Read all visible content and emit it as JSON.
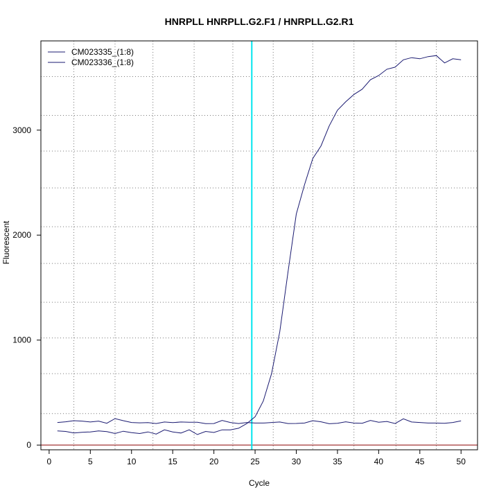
{
  "chart_data": {
    "type": "line",
    "title": "HNRPLL  HNRPLL.G2.F1 / HNRPLL.G2.R1",
    "xlabel": "Cycle",
    "ylabel": "Fluorescent",
    "xlim": [
      -1.0,
      52.0
    ],
    "ylim": [
      -45,
      3850
    ],
    "x_ticks": [
      0,
      5,
      10,
      15,
      20,
      25,
      30,
      35,
      40,
      45,
      50
    ],
    "y_ticks": [
      0,
      1000,
      2000,
      3000
    ],
    "x_grid": [
      3,
      8,
      12.6,
      17.6,
      22.3,
      27.2,
      32,
      37,
      42.1,
      47
    ],
    "y_grid": [
      300,
      680,
      1020,
      1360,
      1730,
      2080,
      2450,
      2800,
      3140,
      3510
    ],
    "grid": true,
    "legend_position": "top-left",
    "threshold_cycle": 24.6,
    "baseline_value": 0,
    "colors": {
      "series": "#191970",
      "threshold": "#00e5ee",
      "baseline": "#8b0000",
      "grid": "#777777"
    },
    "x": [
      1,
      2,
      3,
      4,
      5,
      6,
      7,
      8,
      9,
      10,
      11,
      12,
      13,
      14,
      15,
      16,
      17,
      18,
      19,
      20,
      21,
      22,
      23,
      24,
      25,
      26,
      27,
      28,
      29,
      30,
      31,
      32,
      33,
      34,
      35,
      36,
      37,
      38,
      39,
      40,
      41,
      42,
      43,
      44,
      45,
      46,
      47,
      48,
      49,
      50
    ],
    "series": [
      {
        "name": "CM023335_(1:8)",
        "values": [
          215,
          222,
          232,
          228,
          220,
          228,
          208,
          252,
          232,
          215,
          212,
          214,
          205,
          220,
          214,
          220,
          218,
          218,
          204,
          205,
          235,
          215,
          205,
          215,
          210,
          210,
          215,
          220,
          205,
          206,
          210,
          232,
          222,
          203,
          208,
          222,
          210,
          208,
          235,
          218,
          225,
          205,
          250,
          220,
          215,
          210,
          210,
          207,
          215,
          230
        ]
      },
      {
        "name": "CM023336_(1:8)",
        "values": [
          135,
          130,
          115,
          122,
          125,
          135,
          128,
          110,
          132,
          118,
          110,
          125,
          105,
          145,
          125,
          115,
          145,
          100,
          130,
          120,
          145,
          145,
          160,
          205,
          270,
          420,
          680,
          1080,
          1650,
          2200,
          2480,
          2730,
          2850,
          3040,
          3190,
          3270,
          3340,
          3390,
          3480,
          3520,
          3580,
          3600,
          3670,
          3690,
          3680,
          3700,
          3710,
          3640,
          3680,
          3670
        ]
      }
    ]
  }
}
